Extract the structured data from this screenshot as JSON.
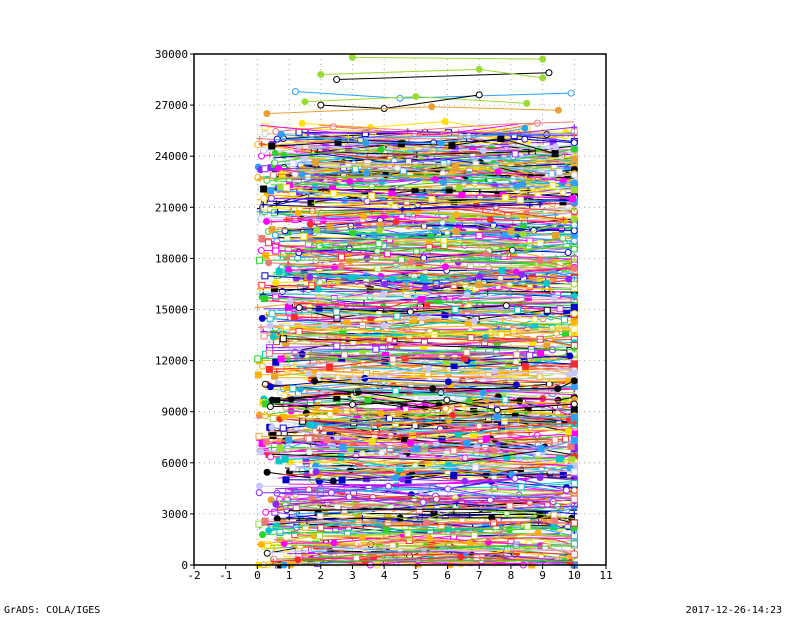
{
  "footer": {
    "left": "GrADS: COLA/IGES",
    "right": "2017-12-26-14:23"
  },
  "chart_data": {
    "type": "line",
    "title": "",
    "xlabel": "",
    "ylabel": "",
    "xlim": [
      -2,
      11
    ],
    "ylim": [
      0,
      30000
    ],
    "x_ticks": [
      -2,
      -1,
      0,
      1,
      2,
      3,
      4,
      5,
      6,
      7,
      8,
      9,
      10,
      11
    ],
    "y_ticks": [
      0,
      3000,
      6000,
      9000,
      12000,
      15000,
      18000,
      21000,
      24000,
      27000,
      30000
    ],
    "y_tick_labels": [
      "0",
      "3000",
      "6000",
      "9000",
      "12000",
      "15000",
      "18000",
      "21000",
      "24000",
      "27000",
      "30000"
    ],
    "grid": true,
    "legend": "none",
    "series_x_range": [
      0,
      10
    ],
    "series_y_range": [
      0,
      26000
    ],
    "colors": [
      "#000000",
      "#ff2b2b",
      "#2ca0ff",
      "#2ad42a",
      "#ff00ff",
      "#ffb300",
      "#9bdc32",
      "#8c28ff",
      "#e8a032",
      "#00c8c8",
      "#0000c8",
      "#ffe000",
      "#c8c8ff",
      "#f07878"
    ],
    "highlighted_series": [
      {
        "x": [
          3.0,
          9.0
        ],
        "y": [
          29800,
          29700
        ],
        "color": "#9bdc32"
      },
      {
        "x": [
          2.5,
          9.2
        ],
        "y": [
          28500,
          28900
        ],
        "color": "#000000"
      },
      {
        "x": [
          2.0,
          7.0,
          9.0
        ],
        "y": [
          28800,
          29100,
          28600
        ],
        "color": "#9bdc32"
      },
      {
        "x": [
          1.2,
          4.5,
          9.9
        ],
        "y": [
          27800,
          27400,
          27700
        ],
        "color": "#2ca0ff"
      },
      {
        "x": [
          1.5,
          5.0,
          8.5
        ],
        "y": [
          27200,
          27500,
          27100
        ],
        "color": "#9bdc32"
      },
      {
        "x": [
          2.0,
          4.0,
          7.0
        ],
        "y": [
          27000,
          26800,
          27600
        ],
        "color": "#000000"
      },
      {
        "x": [
          0.3,
          5.5,
          9.5
        ],
        "y": [
          26500,
          26900,
          26700
        ],
        "color": "#e8a032"
      }
    ],
    "series_count": 600
  }
}
